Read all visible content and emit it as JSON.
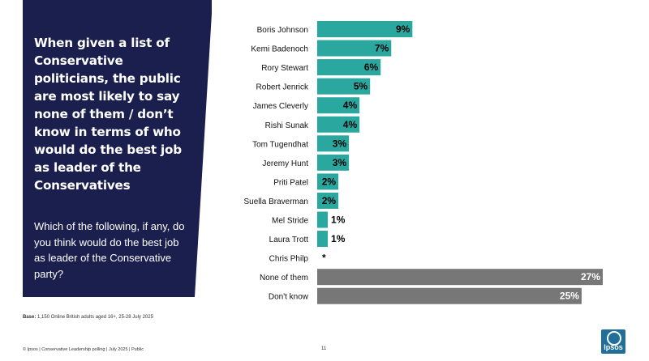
{
  "headline": "When given a list of Conservative politicians, the public are most likely to say none of them / don’t know in terms of who would do the best job as leader of the Conservatives",
  "question": "Which of the following, if any, do you think would do the best job as leader of the Conservative party?",
  "footer": {
    "base_label": "Base:",
    "base_text": "1,150 Online British adults aged 16+,  25-28 July 2025",
    "left": "© Ipsos | Conservative Leadership polling | July 2025 | Public",
    "page_number": "11",
    "logo_text": "Ipsos"
  },
  "colors": {
    "panel": "#1a1f4d",
    "politician_bar": "#2aa8a0",
    "other_bar": "#777777"
  },
  "chart_data": {
    "type": "bar",
    "orientation": "horizontal",
    "categories": [
      "Boris Johnson",
      "Kemi Badenoch",
      "Rory Stewart",
      "Robert Jenrick",
      "James Cleverly",
      "Rishi Sunak",
      "Tom Tugendhat",
      "Jeremy Hunt",
      "Priti Patel",
      "Suella Braverman",
      "Mel Stride",
      "Laura Trott",
      "Chris Philp",
      "None of them",
      "Don't know"
    ],
    "values": [
      9,
      7,
      6,
      5,
      4,
      4,
      3,
      3,
      2,
      2,
      1,
      1,
      0,
      27,
      25
    ],
    "labels": [
      "9%",
      "7%",
      "6%",
      "5%",
      "4%",
      "4%",
      "3%",
      "3%",
      "2%",
      "2%",
      "1%",
      "1%",
      "*",
      "27%",
      "25%"
    ],
    "groups": [
      "politician",
      "politician",
      "politician",
      "politician",
      "politician",
      "politician",
      "politician",
      "politician",
      "politician",
      "politician",
      "politician",
      "politician",
      "politician",
      "other",
      "other"
    ],
    "unit": "%",
    "xlim": [
      0,
      27
    ]
  }
}
